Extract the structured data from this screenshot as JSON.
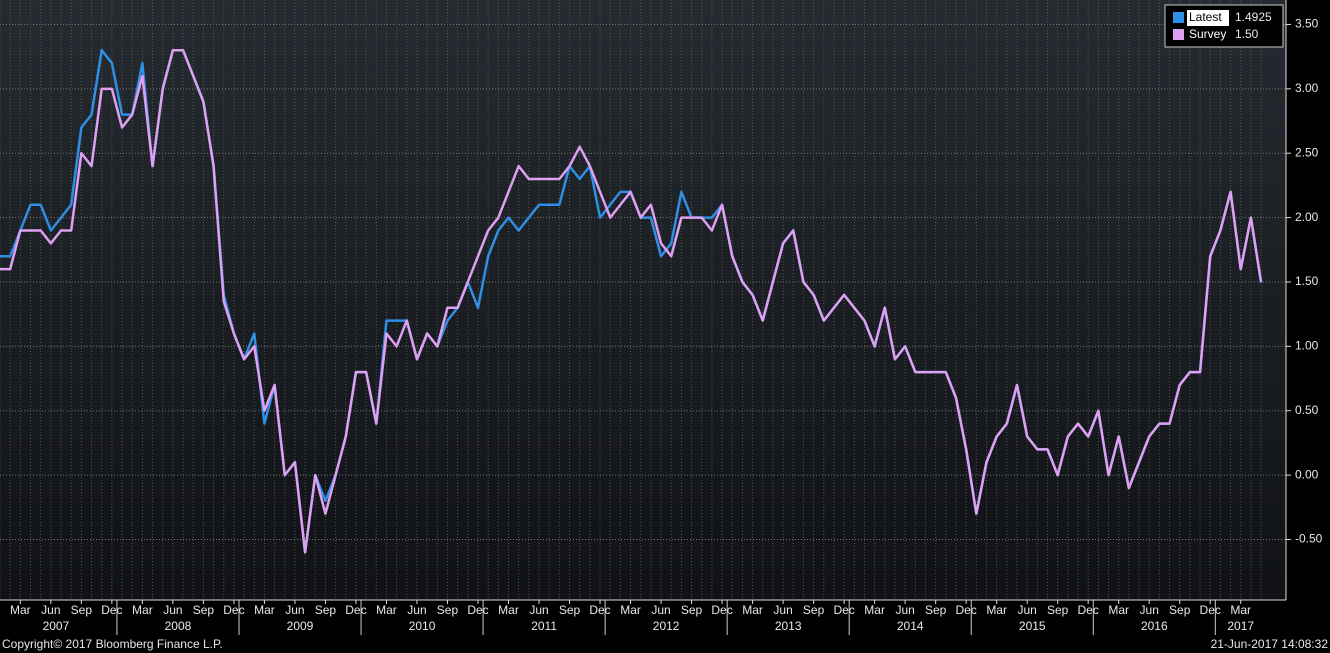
{
  "chart_data": {
    "type": "line",
    "categories": [
      null,
      null,
      "Mar",
      null,
      null,
      "Jun",
      null,
      null,
      "Sep",
      null,
      null,
      "Dec",
      null,
      null,
      "Mar",
      null,
      null,
      "Jun",
      null,
      null,
      "Sep",
      null,
      null,
      "Dec",
      null,
      null,
      "Mar",
      null,
      null,
      "Jun",
      null,
      null,
      "Sep",
      null,
      null,
      "Dec",
      null,
      null,
      "Mar",
      null,
      null,
      "Jun",
      null,
      null,
      "Sep",
      null,
      null,
      "Dec",
      null,
      null,
      "Mar",
      null,
      null,
      "Jun",
      null,
      null,
      "Sep",
      null,
      null,
      "Dec",
      null,
      null,
      "Mar",
      null,
      null,
      "Jun",
      null,
      null,
      "Sep",
      null,
      null,
      "Dec",
      null,
      null,
      "Mar",
      null,
      null,
      "Jun",
      null,
      null,
      "Sep",
      null,
      null,
      "Dec",
      null,
      null,
      "Mar",
      null,
      null,
      "Jun",
      null,
      null,
      "Sep",
      null,
      null,
      "Dec",
      null,
      null,
      "Mar",
      null,
      null,
      "Jun",
      null,
      null,
      "Sep",
      null,
      null,
      "Dec",
      null,
      null,
      "Mar",
      null,
      null,
      "Jun",
      null,
      null,
      "Sep",
      null,
      null,
      "Dec",
      null,
      null,
      "Mar",
      null,
      null
    ],
    "years": [
      "2007",
      "2008",
      "2009",
      "2010",
      "2011",
      "2012",
      "2013",
      "2014",
      "2015",
      "2016",
      "2017"
    ],
    "series": [
      {
        "name": "Latest",
        "legend_value": "1.4925",
        "color": "#2f8fe4",
        "values": [
          1.7,
          1.7,
          1.9,
          2.1,
          2.1,
          1.9,
          2.0,
          2.1,
          2.7,
          2.8,
          3.3,
          3.2,
          2.8,
          2.8,
          3.2,
          2.4,
          3.0,
          3.3,
          3.3,
          3.1,
          2.9,
          2.4,
          1.4,
          1.1,
          0.9,
          1.1,
          0.4,
          0.7,
          0.0,
          0.1,
          -0.6,
          0.0,
          -0.2,
          0.0,
          0.3,
          0.8,
          0.8,
          0.4,
          1.2,
          1.2,
          1.2,
          0.9,
          1.1,
          1.0,
          1.2,
          1.3,
          1.5,
          1.3,
          1.7,
          1.9,
          2.0,
          1.9,
          2.0,
          2.1,
          2.1,
          2.1,
          2.4,
          2.3,
          2.4,
          2.0,
          2.1,
          2.2,
          2.2,
          2.0,
          2.0,
          1.7,
          1.8,
          2.2,
          2.0,
          2.0,
          2.0,
          2.1,
          1.7,
          1.5,
          1.4,
          1.2,
          1.5,
          1.8,
          1.9,
          1.5,
          1.4,
          1.2,
          1.3,
          1.4,
          1.3,
          1.2,
          1.0,
          1.3,
          0.9,
          1.0,
          0.8,
          0.8,
          0.8,
          0.8,
          0.6,
          0.2,
          -0.3,
          0.1,
          0.3,
          0.4,
          0.7,
          0.3,
          0.2,
          0.2,
          0.0,
          0.3,
          0.4,
          0.3,
          0.5,
          0.0,
          0.3,
          -0.1,
          0.1,
          0.3,
          0.4,
          0.4,
          0.7,
          0.8,
          0.8,
          1.7,
          1.9,
          2.2,
          1.6,
          2.0,
          1.4925
        ]
      },
      {
        "name": "Survey",
        "legend_value": "1.50",
        "color": "#dfa0f2",
        "values": [
          1.6,
          1.6,
          1.9,
          1.9,
          1.9,
          1.8,
          1.9,
          1.9,
          2.5,
          2.4,
          3.0,
          3.0,
          2.7,
          2.8,
          3.1,
          2.4,
          3.0,
          3.3,
          3.3,
          3.1,
          2.9,
          2.4,
          1.35,
          1.1,
          0.9,
          1.0,
          0.5,
          0.7,
          0.0,
          0.1,
          -0.6,
          0.0,
          -0.3,
          0.0,
          0.3,
          0.8,
          0.8,
          0.4,
          1.1,
          1.0,
          1.2,
          0.9,
          1.1,
          1.0,
          1.3,
          1.3,
          1.5,
          1.7,
          1.9,
          2.0,
          2.2,
          2.4,
          2.3,
          2.3,
          2.3,
          2.3,
          2.4,
          2.55,
          2.4,
          2.2,
          2.0,
          2.1,
          2.2,
          2.0,
          2.1,
          1.8,
          1.7,
          2.0,
          2.0,
          2.0,
          1.9,
          2.1,
          1.7,
          1.5,
          1.4,
          1.2,
          1.5,
          1.8,
          1.9,
          1.5,
          1.4,
          1.2,
          1.3,
          1.4,
          1.3,
          1.2,
          1.0,
          1.3,
          0.9,
          1.0,
          0.8,
          0.8,
          0.8,
          0.8,
          0.6,
          0.2,
          -0.3,
          0.1,
          0.3,
          0.4,
          0.7,
          0.3,
          0.2,
          0.2,
          0.0,
          0.3,
          0.4,
          0.3,
          0.5,
          0.0,
          0.3,
          -0.1,
          0.1,
          0.3,
          0.4,
          0.4,
          0.7,
          0.8,
          0.8,
          1.7,
          1.9,
          2.2,
          1.6,
          2.0,
          1.5
        ]
      }
    ],
    "ylim": [
      -0.97,
      3.69
    ],
    "yticks": [
      {
        "value": 3.5,
        "label": "3.50"
      },
      {
        "value": 3,
        "label": "3.00"
      },
      {
        "value": 2.5,
        "label": "2.50"
      },
      {
        "value": 2,
        "label": "2.00"
      },
      {
        "value": 1.5,
        "label": "1.50"
      },
      {
        "value": 1,
        "label": "1.00"
      },
      {
        "value": 0.5,
        "label": "0.50"
      },
      {
        "value": 0,
        "label": "0.00"
      },
      {
        "value": -0.5,
        "label": "-0.50"
      }
    ],
    "grid": true,
    "legend": "top-right",
    "footer_left": "Copyright© 2017 Bloomberg Finance L.P.",
    "footer_right": "21-Jun-2017 14:08:32"
  }
}
